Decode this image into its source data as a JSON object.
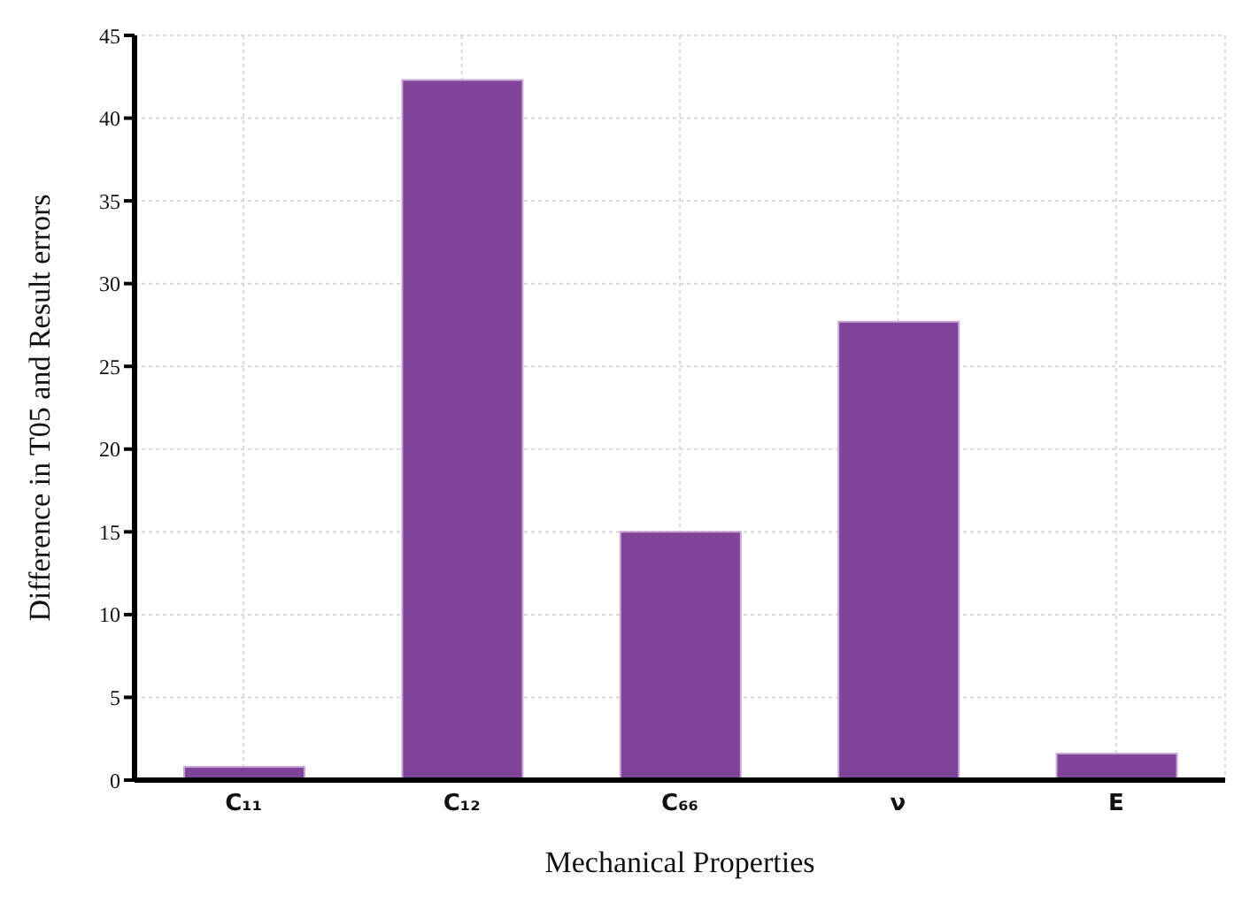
{
  "chart_data": {
    "type": "bar",
    "xlabel": "Mechanical Properties",
    "ylabel": "Difference in T05 and Result errors",
    "categories": [
      "C₁₁",
      "C₁₂",
      "C₆₆",
      "ν",
      "E"
    ],
    "values": [
      0.8,
      42.3,
      15,
      27.7,
      1.6
    ],
    "color": "#7f4497",
    "ylim": [
      0,
      45
    ],
    "yticks": [
      0,
      5,
      10,
      15,
      20,
      25,
      30,
      35,
      40,
      45
    ],
    "grid": true
  }
}
